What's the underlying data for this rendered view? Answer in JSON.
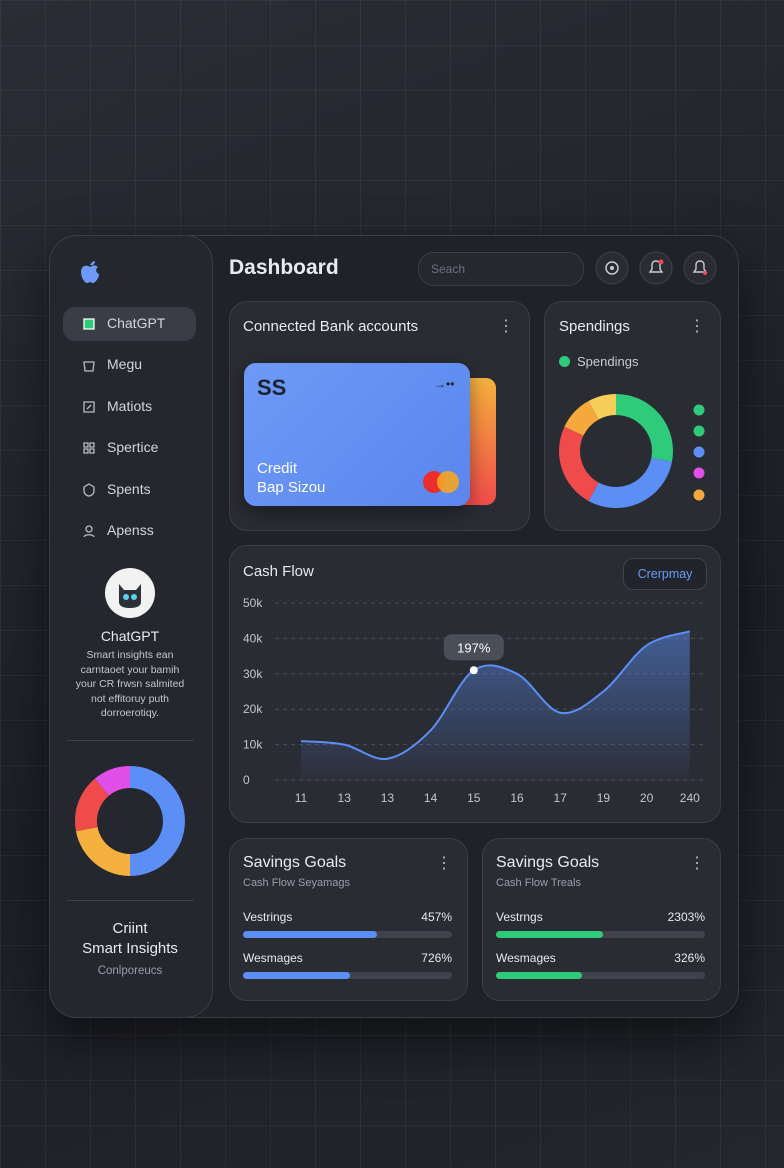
{
  "sidebar": {
    "nav": [
      "ChatGPT",
      "Megu",
      "Matiots",
      "Spertice",
      "Spents",
      "Apenss"
    ],
    "profile": {
      "name": "ChatGPT",
      "text": "Smart insights ean carntaoet your bamih your CR frwsn salmited not effitoruy puth dorroerotiqy."
    },
    "footer": {
      "title": "Criint",
      "subtitle": "Smart Insights",
      "link": "Conlporeucs"
    }
  },
  "header": {
    "title": "Dashboard",
    "search_placeholder": "Seach"
  },
  "accounts": {
    "title": "Connected Bank accounts",
    "card": {
      "line1": "Credit",
      "line2": "Bap Sizou"
    }
  },
  "savings": [
    {
      "title": "Savings Goals",
      "subtitle": "Cash Flow Seyamags",
      "rows": [
        {
          "label": "Vestrings",
          "value": "457%",
          "progress": 64
        },
        {
          "label": "Wesmages",
          "value": "726%",
          "progress": 51
        }
      ]
    },
    {
      "title": "Savings Goals",
      "subtitle": "Cash Flow Treals",
      "rows": [
        {
          "label": "Vestrngs",
          "value": "2303%",
          "progress": 51
        },
        {
          "label": "Wesmages",
          "value": "326%",
          "progress": 41
        }
      ]
    }
  ],
  "chart_data": [
    {
      "type": "donut",
      "values": [
        50,
        22,
        17,
        11
      ],
      "colors": [
        "#5b8ff5",
        "#f5b13d",
        "#f04b4b",
        "#e050e8"
      ]
    },
    {
      "type": "donut",
      "title": "Spendings",
      "legend": "Spendings",
      "values": [
        28,
        30,
        24,
        10,
        8
      ],
      "colors": [
        "#2ecc7a",
        "#5b8ff5",
        "#f04b4b",
        "#f5a93d",
        "#f5cf5a"
      ]
    },
    {
      "type": "line",
      "title": "Cash Flow",
      "button": "Crerpmay",
      "annotation": "197%",
      "categories": [
        "11",
        "13",
        "13",
        "14",
        "15",
        "16",
        "17",
        "19",
        "20",
        "240"
      ],
      "values": [
        11000,
        10000,
        6000,
        14000,
        31000,
        30000,
        19000,
        25000,
        38000,
        42000
      ],
      "color": "#5b8ff5",
      "ylim": [
        0,
        50000
      ],
      "yticks": [
        0,
        {
          "value": 10000,
          "label": "10k"
        },
        {
          "value": 20000,
          "label": "20k"
        },
        {
          "value": 30000,
          "label": "30k"
        },
        {
          "value": 40000,
          "label": "40k"
        },
        {
          "value": 50000,
          "label": "50k"
        }
      ],
      "grid": true
    }
  ]
}
